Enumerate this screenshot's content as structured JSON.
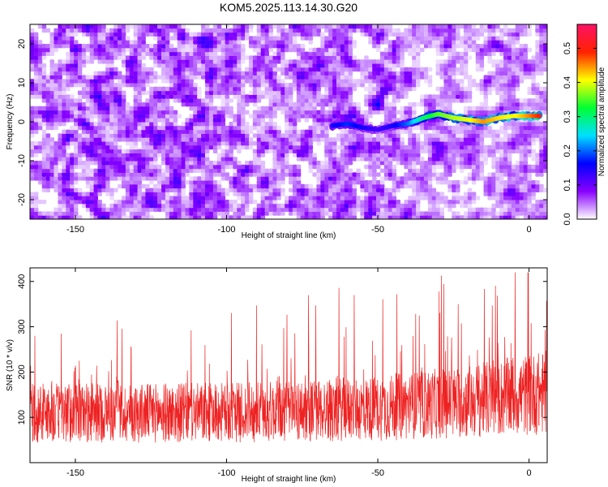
{
  "title": "KOM5.2025.113.14.30.G20",
  "colors": {
    "background": "#ffffff",
    "snr_line": "#ee2222",
    "colormap": [
      "#ffffff",
      "#8800ff",
      "#0000ff",
      "#00e0ff",
      "#00ff33",
      "#ffff00",
      "#ff2200",
      "#ff1166"
    ]
  },
  "chart_data": [
    {
      "type": "heatmap",
      "xlabel": "Height of straight line (km)",
      "ylabel": "Frequency (Hz)",
      "xlim": [
        -165,
        6
      ],
      "ylim": [
        -25,
        25
      ],
      "xticks": [
        -150,
        -100,
        -50,
        0
      ],
      "yticks": [
        -20,
        -10,
        0,
        10,
        20
      ],
      "colorbar": {
        "label": "Normalized spectral amplitude",
        "range": [
          0,
          0.57
        ],
        "ticks": [
          0.0,
          0.1,
          0.2,
          0.3,
          0.4,
          0.5
        ]
      },
      "signal_trace": {
        "x": [
          -65,
          -60,
          -55,
          -50,
          -45,
          -40,
          -35,
          -30,
          -25,
          -20,
          -15,
          -10,
          -5,
          0,
          4
        ],
        "y": [
          -1,
          -0.5,
          -1.5,
          -2,
          -1,
          -0.5,
          1,
          2,
          1,
          0.5,
          0,
          1,
          1.5,
          1.5,
          1.5
        ],
        "amplitude": [
          0.15,
          0.18,
          0.15,
          0.12,
          0.15,
          0.2,
          0.3,
          0.35,
          0.38,
          0.4,
          0.45,
          0.42,
          0.4,
          0.45,
          0.5
        ]
      },
      "background_amplitude": [
        0,
        0.13
      ]
    },
    {
      "type": "line",
      "xlabel": "Height of straight line (km)",
      "ylabel": "SNR (10 * v/v)",
      "xlim": [
        -165,
        6
      ],
      "ylim": [
        0,
        430
      ],
      "xticks": [
        -150,
        -100,
        -50,
        0
      ],
      "yticks": [
        100,
        200,
        300,
        400
      ],
      "series": [
        {
          "baseline": [
            [
              -165,
              110
            ],
            [
              -100,
              110
            ],
            [
              -50,
              120
            ],
            [
              -20,
              135
            ],
            [
              6,
              155
            ]
          ],
          "range_min": 30,
          "range_max": 420
        }
      ]
    }
  ]
}
